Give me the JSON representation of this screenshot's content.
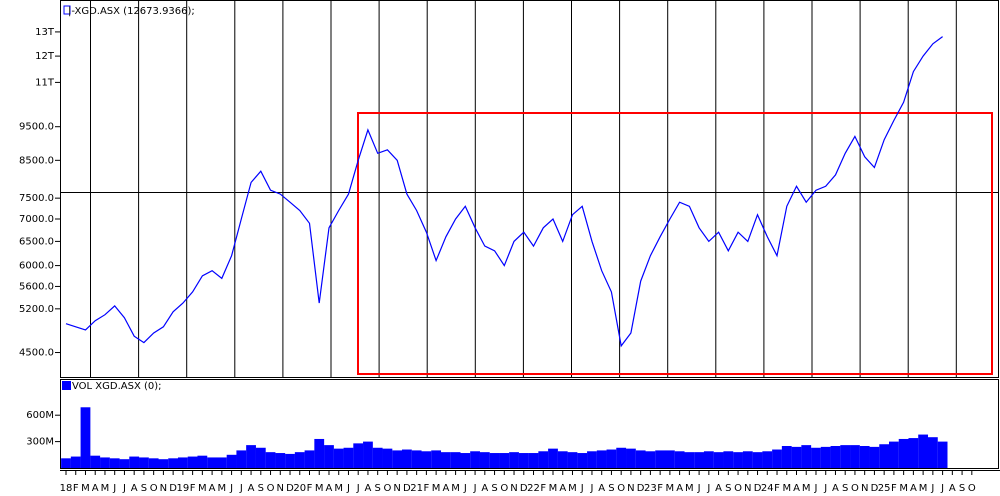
{
  "chart_data": [
    {
      "type": "line",
      "title": "|-XGD.ASX (12673.9366);",
      "log_scale": true,
      "categories": [
        "18",
        "F",
        "M",
        "A",
        "M",
        "J",
        "J",
        "A",
        "S",
        "O",
        "N",
        "D",
        "19",
        "F",
        "M",
        "A",
        "M",
        "J",
        "J",
        "A",
        "S",
        "O",
        "N",
        "D",
        "20",
        "F",
        "M",
        "A",
        "M",
        "J",
        "J",
        "A",
        "S",
        "O",
        "N",
        "D",
        "21",
        "F",
        "M",
        "A",
        "M",
        "J",
        "J",
        "A",
        "S",
        "O",
        "N",
        "D",
        "22",
        "F",
        "M",
        "A",
        "M",
        "J",
        "J",
        "A",
        "S",
        "O",
        "N",
        "D",
        "23",
        "F",
        "M",
        "A",
        "M",
        "J",
        "J",
        "A",
        "S",
        "O",
        "N",
        "D",
        "24",
        "F",
        "M",
        "A",
        "M",
        "J",
        "J",
        "A",
        "S",
        "O",
        "N",
        "D",
        "25",
        "F",
        "M",
        "A",
        "M",
        "J",
        "J",
        "A",
        "S",
        "O"
      ],
      "series": [
        {
          "name": "XGD.ASX",
          "color": "#0000ff",
          "values": [
            4950,
            4900,
            4850,
            5000,
            5100,
            5250,
            5050,
            4750,
            4650,
            4800,
            4900,
            5150,
            5300,
            5500,
            5800,
            5900,
            5750,
            6200,
            7000,
            7900,
            8200,
            7700,
            7600,
            7400,
            7200,
            6900,
            5300,
            6800,
            7200,
            7600,
            8500,
            9400,
            8700,
            8800,
            8500,
            7600,
            7200,
            6700,
            6100,
            6600,
            7000,
            7300,
            6800,
            6400,
            6300,
            6000,
            6500,
            6700,
            6400,
            6800,
            7000,
            6500,
            7100,
            7300,
            6500,
            5900,
            5500,
            4600,
            4800,
            5700,
            6200,
            6600,
            7000,
            7400,
            7300,
            6800,
            6500,
            6700,
            6300,
            6700,
            6500,
            7100,
            6600,
            6200,
            7300,
            7800,
            7400,
            7700,
            7800,
            8100,
            8700,
            9200,
            8600,
            8300,
            9100,
            9700,
            10300,
            11400,
            12000,
            12500,
            12800,
            null,
            null,
            null
          ]
        }
      ],
      "ylim": [
        4150,
        14400
      ],
      "yticks": [
        {
          "value": 4500,
          "label": "4500.0"
        },
        {
          "value": 5200,
          "label": "5200.0"
        },
        {
          "value": 5600,
          "label": "5600.0"
        },
        {
          "value": 6000,
          "label": "6000.0"
        },
        {
          "value": 6500,
          "label": "6500.0"
        },
        {
          "value": 7000,
          "label": "7000.0"
        },
        {
          "value": 7500,
          "label": "7500.0"
        },
        {
          "value": 8500,
          "label": "8500.0"
        },
        {
          "value": 9500,
          "label": "9500.0"
        },
        {
          "value": 11000,
          "label": "11T"
        },
        {
          "value": 12000,
          "label": "12T"
        },
        {
          "value": 13000,
          "label": "13T"
        }
      ]
    },
    {
      "type": "bar",
      "title": "VOL XGD.ASX (0);",
      "color": "#0000ff",
      "values": [
        110000000,
        130000000,
        690000000,
        140000000,
        120000000,
        110000000,
        100000000,
        130000000,
        120000000,
        110000000,
        100000000,
        110000000,
        120000000,
        130000000,
        140000000,
        120000000,
        120000000,
        150000000,
        200000000,
        260000000,
        230000000,
        180000000,
        170000000,
        160000000,
        180000000,
        200000000,
        330000000,
        260000000,
        220000000,
        230000000,
        280000000,
        300000000,
        230000000,
        220000000,
        200000000,
        210000000,
        200000000,
        190000000,
        200000000,
        180000000,
        180000000,
        170000000,
        190000000,
        180000000,
        170000000,
        170000000,
        180000000,
        170000000,
        170000000,
        190000000,
        220000000,
        190000000,
        180000000,
        170000000,
        190000000,
        200000000,
        210000000,
        230000000,
        220000000,
        200000000,
        190000000,
        200000000,
        200000000,
        190000000,
        180000000,
        180000000,
        190000000,
        180000000,
        190000000,
        180000000,
        190000000,
        180000000,
        190000000,
        210000000,
        250000000,
        240000000,
        260000000,
        230000000,
        240000000,
        250000000,
        260000000,
        260000000,
        250000000,
        240000000,
        270000000,
        300000000,
        330000000,
        340000000,
        380000000,
        350000000,
        300000000,
        null,
        null,
        null
      ],
      "ylim": [
        0,
        1000000000
      ],
      "yticks": [
        {
          "value": 300000000,
          "label": "300M"
        },
        {
          "value": 600000000,
          "label": "600M"
        }
      ]
    }
  ]
}
